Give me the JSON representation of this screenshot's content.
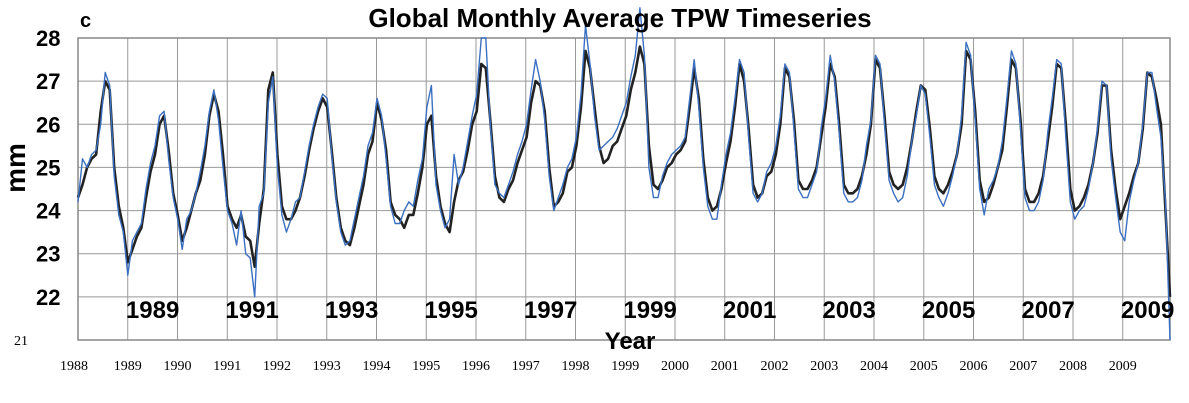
{
  "panel_label": "c",
  "chart_data": {
    "type": "line",
    "title": "Global Monthly Average TPW Timeseries",
    "xlabel": "Year",
    "ylabel": "mm",
    "xlim": [
      1988.0,
      2009.95
    ],
    "ylim": [
      21,
      28
    ],
    "grid": true,
    "y_ticks_bold": [
      "22",
      "23",
      "24",
      "25",
      "26",
      "27",
      "28"
    ],
    "y_tick_extra": "21",
    "x_ticks_bold": [
      "1989",
      "1991",
      "1993",
      "1995",
      "1997",
      "1999",
      "2001",
      "2003",
      "2005",
      "2007",
      "2009"
    ],
    "x_ticks_small": [
      "1988",
      "1989",
      "1990",
      "1991",
      "1992",
      "1993",
      "1994",
      "1995",
      "1996",
      "1997",
      "1998",
      "1999",
      "2000",
      "2001",
      "2002",
      "2003",
      "2004",
      "2005",
      "2006",
      "2007",
      "2008",
      "2009"
    ],
    "x_ticks_small_offset": 0.55,
    "colors": {
      "series_black": "#222222",
      "series_blue": "#3a6fc0",
      "grid": "#999999"
    },
    "series": [
      {
        "color": "#222222",
        "values": [
          24.3,
          24.6,
          25.0,
          25.2,
          25.3,
          26.3,
          27.0,
          26.8,
          25.0,
          24.1,
          23.6,
          22.8,
          23.1,
          23.4,
          23.6,
          24.3,
          24.9,
          25.3,
          26.0,
          26.2,
          25.4,
          24.4,
          23.9,
          23.3,
          23.6,
          24.0,
          24.4,
          24.7,
          25.3,
          26.2,
          26.7,
          26.3,
          25.3,
          24.1,
          23.8,
          23.6,
          23.9,
          23.4,
          23.3,
          22.7,
          23.7,
          24.5,
          26.8,
          27.2,
          25.3,
          24.1,
          23.8,
          23.8,
          24.0,
          24.3,
          24.8,
          25.4,
          25.9,
          26.3,
          26.6,
          26.4,
          25.4,
          24.3,
          23.6,
          23.3,
          23.2,
          23.6,
          24.1,
          24.6,
          25.3,
          25.6,
          26.5,
          26.1,
          25.4,
          24.2,
          23.9,
          23.8,
          23.6,
          23.9,
          23.9,
          24.4,
          25.0,
          26.0,
          26.2,
          24.8,
          24.1,
          23.7,
          23.5,
          24.2,
          24.7,
          24.9,
          25.4,
          26.0,
          26.3,
          27.4,
          27.3,
          26.1,
          24.8,
          24.3,
          24.2,
          24.5,
          24.7,
          25.1,
          25.4,
          25.7,
          26.5,
          27.0,
          26.9,
          26.3,
          25.0,
          24.1,
          24.2,
          24.4,
          24.9,
          25.0,
          25.5,
          26.4,
          27.7,
          27.3,
          26.4,
          25.5,
          25.1,
          25.2,
          25.5,
          25.6,
          25.9,
          26.2,
          26.8,
          27.2,
          27.8,
          27.4,
          25.5,
          24.6,
          24.5,
          24.7,
          25.0,
          25.1,
          25.3,
          25.4,
          25.6,
          26.4,
          27.3,
          26.6,
          25.2,
          24.3,
          24.0,
          24.1,
          24.5,
          25.1,
          25.6,
          26.4,
          27.4,
          27.0,
          25.9,
          24.6,
          24.3,
          24.4,
          24.8,
          24.9,
          25.3,
          26.0,
          27.3,
          27.1,
          26.1,
          24.7,
          24.5,
          24.5,
          24.7,
          25.0,
          25.7,
          26.4,
          27.4,
          27.1,
          26.0,
          24.6,
          24.4,
          24.4,
          24.5,
          24.8,
          25.3,
          26.0,
          27.5,
          27.3,
          26.2,
          24.9,
          24.6,
          24.5,
          24.6,
          25.0,
          25.6,
          26.3,
          26.9,
          26.8,
          25.9,
          24.8,
          24.5,
          24.4,
          24.6,
          24.9,
          25.3,
          26.0,
          27.7,
          27.5,
          26.3,
          24.7,
          24.2,
          24.3,
          24.6,
          25.0,
          25.4,
          26.4,
          27.5,
          27.3,
          26.1,
          24.5,
          24.2,
          24.2,
          24.4,
          24.8,
          25.6,
          26.4,
          27.4,
          27.3,
          26.0,
          24.5,
          24.0,
          24.1,
          24.3,
          24.6,
          25.1,
          25.8,
          26.9,
          26.9,
          25.4,
          24.5,
          23.8,
          24.1,
          24.4,
          24.8,
          25.1,
          25.9,
          27.2,
          27.1,
          26.6,
          26.0,
          24.0,
          22.0
        ]
      },
      {
        "color": "#3a6fc0",
        "values": [
          24.2,
          25.2,
          25.0,
          25.3,
          25.4,
          26.0,
          27.2,
          26.9,
          24.8,
          23.9,
          23.5,
          22.5,
          23.3,
          23.5,
          23.7,
          24.5,
          25.1,
          25.5,
          26.2,
          26.3,
          25.2,
          24.3,
          23.8,
          23.1,
          23.8,
          24.0,
          24.4,
          24.9,
          25.5,
          26.3,
          26.8,
          26.1,
          25.0,
          24.0,
          23.7,
          23.2,
          24.0,
          23.0,
          22.9,
          22.0,
          24.1,
          24.4,
          26.5,
          27.1,
          25.0,
          23.9,
          23.5,
          23.8,
          24.2,
          24.3,
          24.9,
          25.5,
          26.0,
          26.4,
          26.7,
          26.6,
          25.3,
          24.2,
          23.5,
          23.2,
          23.3,
          23.8,
          24.3,
          24.8,
          25.5,
          25.8,
          26.6,
          26.2,
          25.2,
          24.1,
          23.7,
          23.7,
          24.0,
          24.2,
          24.1,
          24.7,
          25.2,
          26.4,
          26.9,
          24.6,
          24.0,
          23.6,
          23.8,
          25.3,
          24.6,
          25.0,
          25.6,
          26.2,
          26.7,
          28.0,
          28.0,
          26.0,
          24.6,
          24.4,
          24.3,
          24.6,
          24.9,
          25.3,
          25.6,
          26.0,
          26.8,
          27.5,
          27.0,
          26.1,
          24.8,
          24.0,
          24.3,
          24.6,
          25.0,
          25.2,
          25.7,
          26.7,
          28.3,
          27.4,
          26.2,
          25.4,
          25.5,
          25.6,
          25.7,
          25.9,
          26.2,
          26.5,
          27.1,
          27.6,
          28.7,
          27.6,
          25.0,
          24.3,
          24.3,
          24.8,
          25.1,
          25.3,
          25.4,
          25.5,
          25.7,
          26.6,
          27.5,
          26.4,
          25.0,
          24.1,
          23.8,
          23.8,
          24.6,
          25.3,
          25.8,
          26.6,
          27.5,
          27.2,
          25.7,
          24.4,
          24.2,
          24.4,
          24.9,
          25.1,
          25.5,
          26.2,
          27.4,
          27.2,
          25.9,
          24.5,
          24.3,
          24.3,
          24.6,
          24.9,
          25.9,
          26.6,
          27.6,
          27.0,
          25.8,
          24.4,
          24.2,
          24.2,
          24.3,
          24.7,
          25.5,
          26.1,
          27.6,
          27.4,
          26.0,
          24.7,
          24.4,
          24.2,
          24.3,
          24.8,
          25.6,
          26.2,
          26.9,
          26.7,
          25.7,
          24.6,
          24.3,
          24.1,
          24.4,
          24.8,
          25.3,
          26.2,
          27.9,
          27.6,
          26.1,
          24.5,
          23.9,
          24.5,
          24.7,
          25.0,
          25.6,
          26.6,
          27.7,
          27.4,
          25.9,
          24.3,
          24.0,
          24.0,
          24.2,
          24.7,
          25.8,
          26.6,
          27.5,
          27.4,
          25.7,
          24.2,
          23.8,
          24.0,
          24.1,
          24.5,
          25.1,
          25.9,
          27.0,
          26.9,
          25.2,
          24.3,
          23.5,
          23.3,
          24.2,
          24.7,
          25.1,
          26.0,
          27.2,
          27.2,
          26.4,
          25.7,
          24.2,
          21.0
        ]
      }
    ]
  }
}
